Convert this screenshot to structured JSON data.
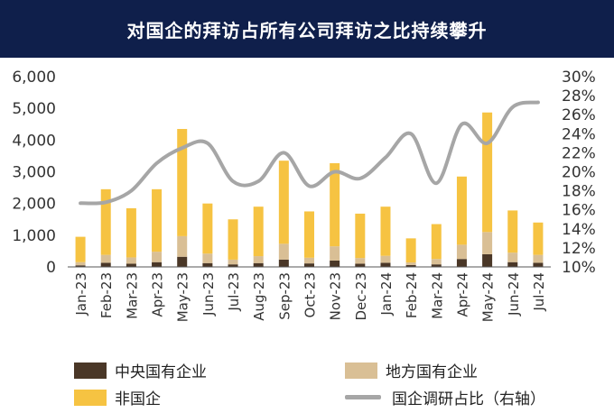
{
  "header": {
    "title": "对国企的拜访占所有公司拜访之比持续攀升"
  },
  "colors": {
    "header_bg": "#0f1f4b",
    "central_soe": "#4a3727",
    "local_soe": "#d9bf95",
    "non_soe": "#f6c342",
    "ratio_line": "#a6a6a6"
  },
  "legend": [
    {
      "label": "中央国有企业",
      "color": "#4a3727",
      "kind": "bar"
    },
    {
      "label": "地方国有企业",
      "color": "#d9bf95",
      "kind": "bar"
    },
    {
      "label": "非国企",
      "color": "#f6c342",
      "kind": "bar"
    },
    {
      "label": "国企调研占比（右轴）",
      "color": "#a6a6a6",
      "kind": "line"
    }
  ],
  "chart_data": {
    "type": "bar",
    "stacked": true,
    "categories": [
      "Jan-23",
      "Feb-23",
      "Mar-23",
      "Apr-23",
      "May-23",
      "Jun-23",
      "Jul-23",
      "Aug-23",
      "Sep-23",
      "Oct-23",
      "Nov-23",
      "Dec-23",
      "Jan-24",
      "Feb-24",
      "Mar-24",
      "Apr-24",
      "May-24",
      "Jun-24",
      "Jul-24"
    ],
    "series": [
      {
        "name": "中央国有企业",
        "type": "bar",
        "axis": "left",
        "values": [
          50,
          130,
          100,
          150,
          320,
          120,
          80,
          120,
          230,
          110,
          200,
          100,
          130,
          60,
          80,
          250,
          400,
          150,
          130
        ]
      },
      {
        "name": "地方国有企业",
        "type": "bar",
        "axis": "left",
        "values": [
          100,
          250,
          200,
          330,
          650,
          300,
          150,
          220,
          500,
          180,
          450,
          180,
          220,
          80,
          170,
          450,
          700,
          300,
          250
        ]
      },
      {
        "name": "非国企",
        "type": "bar",
        "axis": "left",
        "values": [
          800,
          2070,
          1550,
          1970,
          3380,
          1580,
          1270,
          1560,
          2620,
          1460,
          2620,
          1400,
          1550,
          760,
          1100,
          2150,
          3770,
          1330,
          1020
        ]
      },
      {
        "name": "国企调研占比（右轴）",
        "type": "line",
        "axis": "right",
        "values": [
          16.7,
          16.8,
          18.0,
          20.9,
          22.5,
          23.0,
          19.0,
          19.0,
          22.0,
          18.5,
          20.0,
          19.3,
          21.5,
          24.0,
          18.8,
          25.0,
          23.0,
          26.8,
          27.3
        ]
      }
    ],
    "y_left": {
      "ticks": [
        "0",
        "1,000",
        "2,000",
        "3,000",
        "4,000",
        "5,000",
        "6,000"
      ],
      "range": [
        0,
        6000
      ]
    },
    "y_right": {
      "ticks": [
        "10%",
        "12%",
        "14%",
        "16%",
        "18%",
        "20%",
        "22%",
        "24%",
        "26%",
        "28%",
        "30%"
      ],
      "range": [
        10,
        30
      ]
    },
    "grid": false,
    "legend_position": "bottom"
  }
}
